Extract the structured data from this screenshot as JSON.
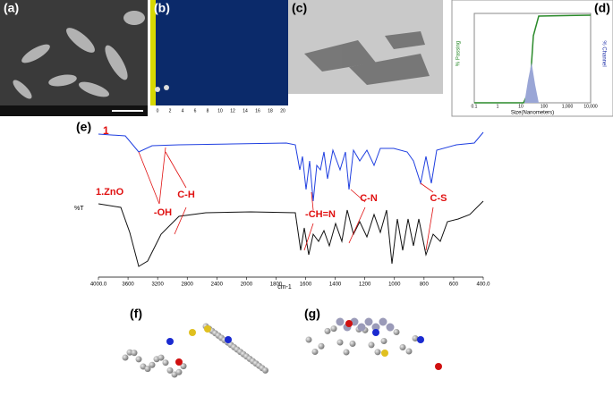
{
  "panels": {
    "a": {
      "label": "(a)"
    },
    "b": {
      "label": "(b)",
      "ticks": [
        "0",
        "2",
        "4",
        "6",
        "8",
        "10",
        "12",
        "14",
        "16",
        "18",
        "20"
      ]
    },
    "c": {
      "label": "(c)"
    },
    "d": {
      "label": "(d)",
      "x_label": "Size(Nanometers)",
      "y_label": "% Passing",
      "y2_label": "% Channel",
      "x_ticks": [
        "0.1",
        "1",
        "10",
        "100",
        "1,000",
        "10,000"
      ]
    },
    "e": {
      "label": "(e)",
      "series_1": "1",
      "series_2": "1.ZnO",
      "y_label": "%T",
      "x_label": "cm-1",
      "annotations": [
        "-OH",
        "C-H",
        "-CH=N",
        "C-N",
        "C-S"
      ],
      "x_ticks": [
        "4000.0",
        "3600",
        "3200",
        "2800",
        "2400",
        "2000",
        "1800",
        "1600",
        "1400",
        "1200",
        "1000",
        "800",
        "600",
        "400.0"
      ]
    },
    "f": {
      "label": "(f)"
    },
    "g": {
      "label": "(g)"
    }
  }
}
